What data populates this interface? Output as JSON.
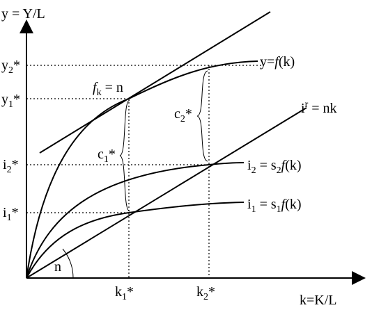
{
  "axes": {
    "y": {
      "main": "y = Y/L"
    },
    "x": {
      "main": "k=K/L"
    }
  },
  "ticks": {
    "y2": {
      "main": "y",
      "sub": "2",
      "sup": "*"
    },
    "y1": {
      "main": "y",
      "sub": "1",
      "sup": "*"
    },
    "i2": {
      "main": "i",
      "sub": "2",
      "sup": "*"
    },
    "i1": {
      "main": "i",
      "sub": "1",
      "sup": "*"
    },
    "k1": {
      "main": "k",
      "sub": "1",
      "sup": "*"
    },
    "k2": {
      "main": "k",
      "sub": "2",
      "sup": "*"
    }
  },
  "curves": {
    "production": {
      "a": "y=",
      "f": "f",
      "b": "(k)"
    },
    "investment_line": {
      "main": "i",
      "sup": "r",
      "rest": " = nk"
    },
    "i2": {
      "main": "i",
      "sub": "2",
      "mid": " = s",
      "sub2": "2",
      "f": "f",
      "b": "(k)"
    },
    "i1": {
      "main": "i",
      "sub": "1",
      "mid": " = s",
      "sub2": "1",
      "f": "f",
      "b": "(k)"
    }
  },
  "annotations": {
    "tangency": {
      "main": "f",
      "sub": "k",
      "rest": " = n"
    },
    "c1": {
      "main": "c",
      "sub": "1",
      "sup": "*"
    },
    "c2": {
      "main": "c",
      "sub": "2",
      "sup": "*"
    },
    "angle": "n"
  }
}
